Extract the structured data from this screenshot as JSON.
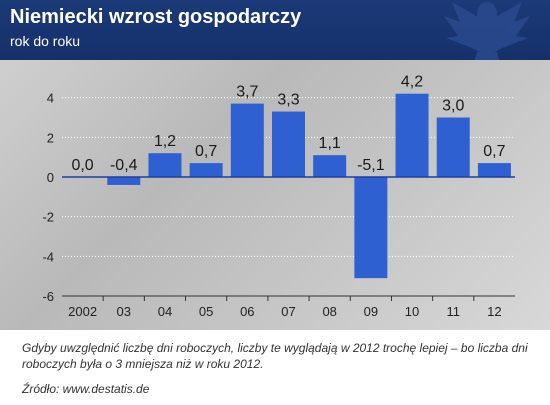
{
  "header": {
    "title": "Niemiecki wzrost gospodarczy",
    "subtitle": "rok do roku"
  },
  "caption": "Gdyby uwzględnić liczbę dni roboczych, liczby te wyglądają w 2012 trochę lepiej – bo liczba dni roboczych była o 3 mniejsza niż w roku 2012.",
  "source": "Źródło: www.destatis.de",
  "colors": {
    "header_bg": "#1c3a78",
    "bar": "#2f60d2",
    "zero_line": "#1f3fa0",
    "grid": "#ffffff"
  },
  "icons": [
    "eagle-emblem-icon"
  ],
  "chart_data": {
    "type": "bar",
    "categories": [
      "2002",
      "03",
      "04",
      "05",
      "06",
      "07",
      "08",
      "09",
      "10",
      "11",
      "12"
    ],
    "values": [
      0.0,
      -0.4,
      1.2,
      0.7,
      3.7,
      3.3,
      1.1,
      -5.1,
      4.2,
      3.0,
      0.7
    ],
    "value_labels": [
      "0,0",
      "-0,4",
      "1,2",
      "0,7",
      "3,7",
      "3,3",
      "1,1",
      "-5,1",
      "4,2",
      "3,0",
      "0,7"
    ],
    "ylim": [
      -6,
      6
    ],
    "yticks": [
      -6,
      -4,
      -2,
      0,
      2,
      4
    ],
    "ytick_labels": [
      "-6",
      "-4",
      "-2",
      "0",
      "2",
      "4"
    ],
    "title": "Niemiecki wzrost gospodarczy",
    "subtitle": "rok do roku",
    "xlabel": "",
    "ylabel": "",
    "grid": true,
    "legend": false
  }
}
